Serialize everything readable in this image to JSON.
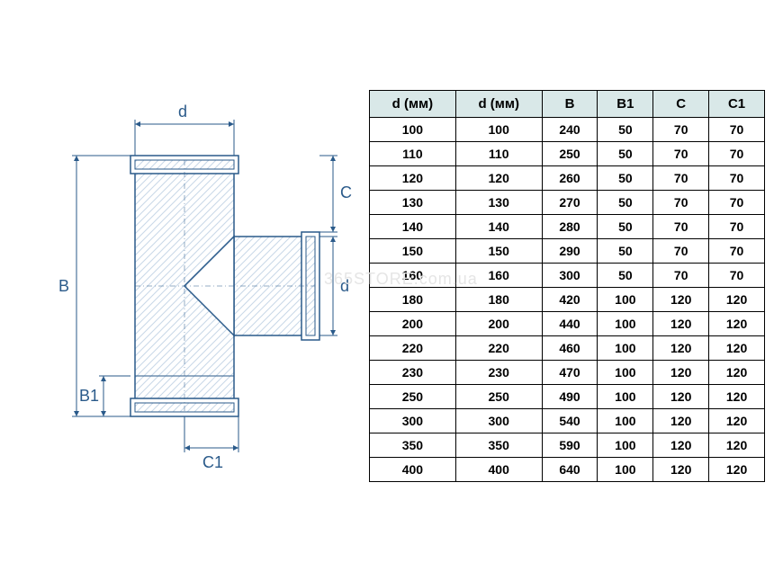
{
  "diagram": {
    "type": "technical-drawing",
    "labels": {
      "d_top": "d",
      "d_right": "d",
      "B": "B",
      "B1": "B1",
      "C": "C",
      "C1": "C1"
    },
    "colors": {
      "outline": "#2a5a8a",
      "hatch": "#c8d8e8",
      "dim_line": "#2a5a8a",
      "label": "#2a5a8a"
    }
  },
  "table": {
    "type": "table",
    "header_bg": "#d9e8e8",
    "border_color": "#000000",
    "columns": [
      "d (мм)",
      "d (мм)",
      "B",
      "B1",
      "C",
      "C1"
    ],
    "rows": [
      [
        "100",
        "100",
        "240",
        "50",
        "70",
        "70"
      ],
      [
        "110",
        "110",
        "250",
        "50",
        "70",
        "70"
      ],
      [
        "120",
        "120",
        "260",
        "50",
        "70",
        "70"
      ],
      [
        "130",
        "130",
        "270",
        "50",
        "70",
        "70"
      ],
      [
        "140",
        "140",
        "280",
        "50",
        "70",
        "70"
      ],
      [
        "150",
        "150",
        "290",
        "50",
        "70",
        "70"
      ],
      [
        "160",
        "160",
        "300",
        "50",
        "70",
        "70"
      ],
      [
        "180",
        "180",
        "420",
        "100",
        "120",
        "120"
      ],
      [
        "200",
        "200",
        "440",
        "100",
        "120",
        "120"
      ],
      [
        "220",
        "220",
        "460",
        "100",
        "120",
        "120"
      ],
      [
        "230",
        "230",
        "470",
        "100",
        "120",
        "120"
      ],
      [
        "250",
        "250",
        "490",
        "100",
        "120",
        "120"
      ],
      [
        "300",
        "300",
        "540",
        "100",
        "120",
        "120"
      ],
      [
        "350",
        "350",
        "590",
        "100",
        "120",
        "120"
      ],
      [
        "400",
        "400",
        "640",
        "100",
        "120",
        "120"
      ]
    ]
  },
  "watermark": {
    "text": "365STORE.com.ua",
    "color": "#dddddd"
  }
}
